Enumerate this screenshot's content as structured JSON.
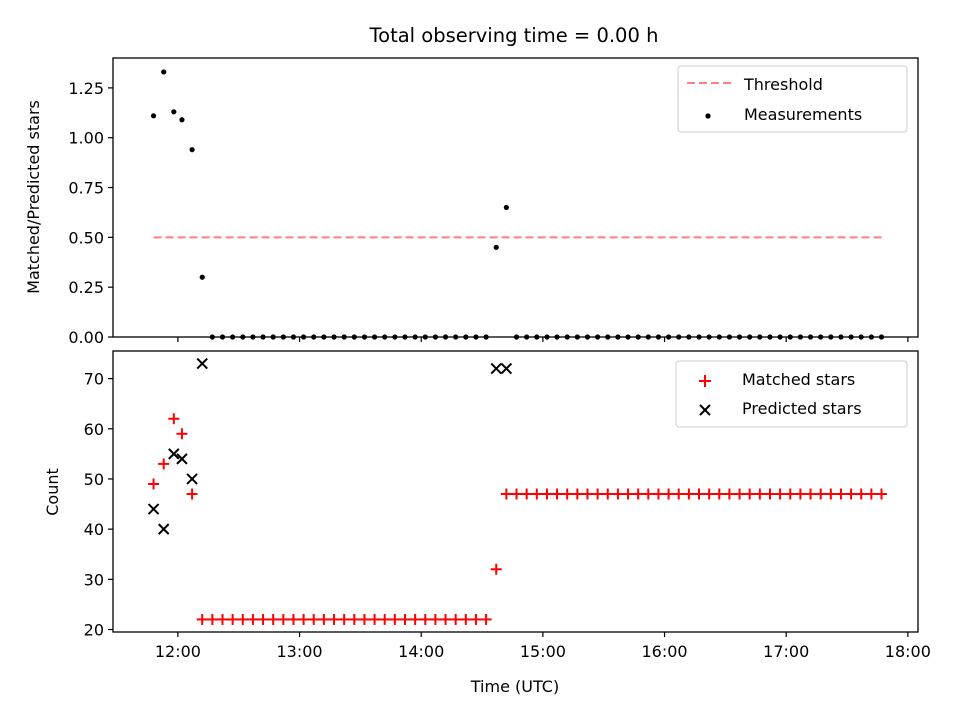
{
  "figure": {
    "title": "Total observing time = 0.00 h"
  },
  "chart_data": [
    {
      "type": "scatter",
      "ylabel": "Matched/Predicted stars",
      "ylim": [
        0,
        1.4
      ],
      "yticks": [
        0.0,
        0.25,
        0.5,
        0.75,
        1.0,
        1.25
      ],
      "ytick_labels": [
        "0.00",
        "0.25",
        "0.50",
        "0.75",
        "1.00",
        "1.25"
      ],
      "xlim": [
        "11:28",
        "18:05"
      ],
      "xticks": [
        "12:00",
        "13:00",
        "14:00",
        "15:00",
        "16:00",
        "17:00",
        "18:00"
      ],
      "grid": false,
      "legend_position": "upper right",
      "threshold": {
        "name": "Threshold",
        "value": 0.5,
        "x_range": [
          "11:48",
          "17:48"
        ],
        "color": "#ff7f7f",
        "style": "dashed"
      },
      "series": [
        {
          "name": "Measurements",
          "color": "#000000",
          "marker": "dot",
          "points": [
            [
              "11:48",
              1.11
            ],
            [
              "11:53",
              1.33
            ],
            [
              "11:58",
              1.13
            ],
            [
              "12:02",
              1.09
            ],
            [
              "12:07",
              0.94
            ],
            [
              "12:12",
              0.3
            ],
            [
              "12:17",
              0.0
            ],
            [
              "12:22",
              0.0
            ],
            [
              "12:27",
              0.0
            ],
            [
              "12:32",
              0.0
            ],
            [
              "12:37",
              0.0
            ],
            [
              "12:42",
              0.0
            ],
            [
              "12:47",
              0.0
            ],
            [
              "12:52",
              0.0
            ],
            [
              "12:57",
              0.0
            ],
            [
              "13:02",
              0.0
            ],
            [
              "13:07",
              0.0
            ],
            [
              "13:12",
              0.0
            ],
            [
              "13:17",
              0.0
            ],
            [
              "13:22",
              0.0
            ],
            [
              "13:27",
              0.0
            ],
            [
              "13:32",
              0.0
            ],
            [
              "13:37",
              0.0
            ],
            [
              "13:42",
              0.0
            ],
            [
              "13:47",
              0.0
            ],
            [
              "13:52",
              0.0
            ],
            [
              "13:57",
              0.0
            ],
            [
              "14:02",
              0.0
            ],
            [
              "14:07",
              0.0
            ],
            [
              "14:12",
              0.0
            ],
            [
              "14:17",
              0.0
            ],
            [
              "14:22",
              0.0
            ],
            [
              "14:27",
              0.0
            ],
            [
              "14:32",
              0.0
            ],
            [
              "14:37",
              0.45
            ],
            [
              "14:42",
              0.65
            ],
            [
              "14:47",
              0.0
            ],
            [
              "14:52",
              0.0
            ],
            [
              "14:57",
              0.0
            ],
            [
              "15:02",
              0.0
            ],
            [
              "15:07",
              0.0
            ],
            [
              "15:12",
              0.0
            ],
            [
              "15:17",
              0.0
            ],
            [
              "15:22",
              0.0
            ],
            [
              "15:27",
              0.0
            ],
            [
              "15:32",
              0.0
            ],
            [
              "15:37",
              0.0
            ],
            [
              "15:42",
              0.0
            ],
            [
              "15:47",
              0.0
            ],
            [
              "15:52",
              0.0
            ],
            [
              "15:57",
              0.0
            ],
            [
              "16:02",
              0.0
            ],
            [
              "16:07",
              0.0
            ],
            [
              "16:12",
              0.0
            ],
            [
              "16:17",
              0.0
            ],
            [
              "16:22",
              0.0
            ],
            [
              "16:27",
              0.0
            ],
            [
              "16:32",
              0.0
            ],
            [
              "16:37",
              0.0
            ],
            [
              "16:42",
              0.0
            ],
            [
              "16:47",
              0.0
            ],
            [
              "16:52",
              0.0
            ],
            [
              "16:57",
              0.0
            ],
            [
              "17:02",
              0.0
            ],
            [
              "17:07",
              0.0
            ],
            [
              "17:12",
              0.0
            ],
            [
              "17:17",
              0.0
            ],
            [
              "17:22",
              0.0
            ],
            [
              "17:27",
              0.0
            ],
            [
              "17:32",
              0.0
            ],
            [
              "17:37",
              0.0
            ],
            [
              "17:42",
              0.0
            ],
            [
              "17:47",
              0.0
            ]
          ]
        }
      ]
    },
    {
      "type": "scatter",
      "xlabel": "Time (UTC)",
      "ylabel": "Count",
      "ylim": [
        19.5,
        75.5
      ],
      "yticks": [
        20,
        30,
        40,
        50,
        60,
        70
      ],
      "ytick_labels": [
        "20",
        "30",
        "40",
        "50",
        "60",
        "70"
      ],
      "xlim": [
        "11:28",
        "18:05"
      ],
      "xticks": [
        "12:00",
        "13:00",
        "14:00",
        "15:00",
        "16:00",
        "17:00",
        "18:00"
      ],
      "xtick_labels": [
        "12:00",
        "13:00",
        "14:00",
        "15:00",
        "16:00",
        "17:00",
        "18:00"
      ],
      "grid": false,
      "legend_position": "upper right",
      "series": [
        {
          "name": "Matched stars",
          "color": "#ff0000",
          "marker": "plus",
          "points": [
            [
              "11:48",
              49
            ],
            [
              "11:53",
              53
            ],
            [
              "11:58",
              62
            ],
            [
              "12:02",
              59
            ],
            [
              "12:07",
              47
            ],
            [
              "12:12",
              22
            ],
            [
              "12:17",
              22
            ],
            [
              "12:22",
              22
            ],
            [
              "12:27",
              22
            ],
            [
              "12:32",
              22
            ],
            [
              "12:37",
              22
            ],
            [
              "12:42",
              22
            ],
            [
              "12:47",
              22
            ],
            [
              "12:52",
              22
            ],
            [
              "12:57",
              22
            ],
            [
              "13:02",
              22
            ],
            [
              "13:07",
              22
            ],
            [
              "13:12",
              22
            ],
            [
              "13:17",
              22
            ],
            [
              "13:22",
              22
            ],
            [
              "13:27",
              22
            ],
            [
              "13:32",
              22
            ],
            [
              "13:37",
              22
            ],
            [
              "13:42",
              22
            ],
            [
              "13:47",
              22
            ],
            [
              "13:52",
              22
            ],
            [
              "13:57",
              22
            ],
            [
              "14:02",
              22
            ],
            [
              "14:07",
              22
            ],
            [
              "14:12",
              22
            ],
            [
              "14:17",
              22
            ],
            [
              "14:22",
              22
            ],
            [
              "14:27",
              22
            ],
            [
              "14:32",
              22
            ],
            [
              "14:37",
              32
            ],
            [
              "14:42",
              47
            ],
            [
              "14:47",
              47
            ],
            [
              "14:52",
              47
            ],
            [
              "14:57",
              47
            ],
            [
              "15:02",
              47
            ],
            [
              "15:07",
              47
            ],
            [
              "15:12",
              47
            ],
            [
              "15:17",
              47
            ],
            [
              "15:22",
              47
            ],
            [
              "15:27",
              47
            ],
            [
              "15:32",
              47
            ],
            [
              "15:37",
              47
            ],
            [
              "15:42",
              47
            ],
            [
              "15:47",
              47
            ],
            [
              "15:52",
              47
            ],
            [
              "15:57",
              47
            ],
            [
              "16:02",
              47
            ],
            [
              "16:07",
              47
            ],
            [
              "16:12",
              47
            ],
            [
              "16:17",
              47
            ],
            [
              "16:22",
              47
            ],
            [
              "16:27",
              47
            ],
            [
              "16:32",
              47
            ],
            [
              "16:37",
              47
            ],
            [
              "16:42",
              47
            ],
            [
              "16:47",
              47
            ],
            [
              "16:52",
              47
            ],
            [
              "16:57",
              47
            ],
            [
              "17:02",
              47
            ],
            [
              "17:07",
              47
            ],
            [
              "17:12",
              47
            ],
            [
              "17:17",
              47
            ],
            [
              "17:22",
              47
            ],
            [
              "17:27",
              47
            ],
            [
              "17:32",
              47
            ],
            [
              "17:37",
              47
            ],
            [
              "17:42",
              47
            ],
            [
              "17:47",
              47
            ]
          ]
        },
        {
          "name": "Predicted stars",
          "color": "#000000",
          "marker": "x",
          "points": [
            [
              "11:48",
              44
            ],
            [
              "11:53",
              40
            ],
            [
              "11:58",
              55
            ],
            [
              "12:02",
              54
            ],
            [
              "12:07",
              50
            ],
            [
              "12:12",
              73
            ],
            [
              "14:37",
              72
            ],
            [
              "14:42",
              72
            ]
          ]
        }
      ]
    }
  ]
}
